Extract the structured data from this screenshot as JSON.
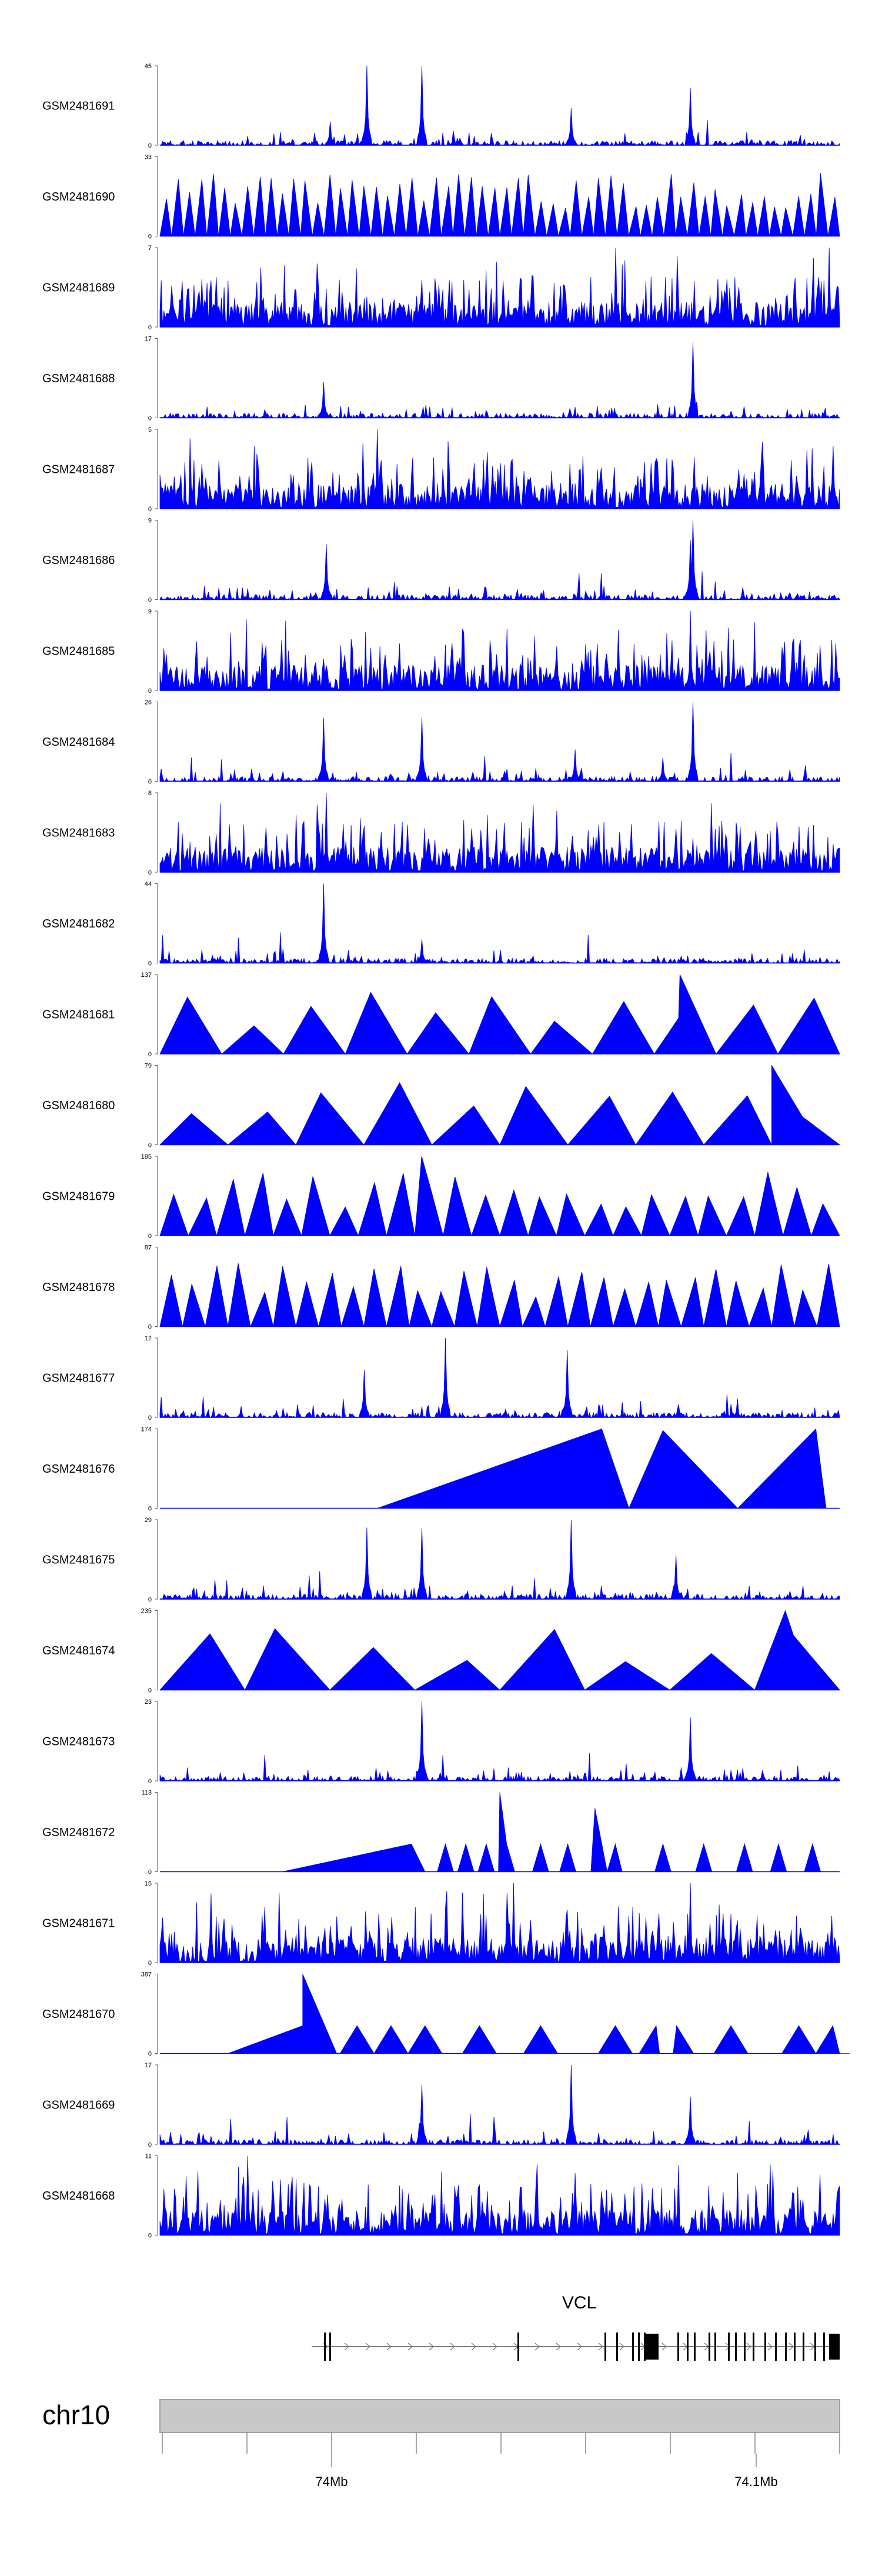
{
  "chart_data": {
    "type": "genome-browser-coverage",
    "color": "#0000ff",
    "tracks": [
      {
        "sample": "GSM2481691",
        "ymax": "45",
        "ymin": "0",
        "style": "spiky",
        "peaks": [
          [
            0.305,
            1.0
          ],
          [
            0.385,
            1.0
          ],
          [
            0.605,
            0.47
          ],
          [
            0.78,
            0.72
          ],
          [
            0.25,
            0.3
          ]
        ]
      },
      {
        "sample": "GSM2481690",
        "ymax": "33",
        "ymin": "0",
        "style": "triangles",
        "density": 58
      },
      {
        "sample": "GSM2481689",
        "ymax": "7",
        "ymin": "0",
        "style": "dense",
        "peaks": [
          [
            0.67,
            1.0
          ],
          [
            0.985,
            1.0
          ]
        ]
      },
      {
        "sample": "GSM2481688",
        "ymax": "17",
        "ymin": "0",
        "style": "spiky",
        "peaks": [
          [
            0.785,
            0.95
          ],
          [
            0.24,
            0.45
          ]
        ]
      },
      {
        "sample": "GSM2481687",
        "ymax": "5",
        "ymin": "0",
        "style": "dense",
        "peaks": [
          [
            0.32,
            1.0
          ]
        ]
      },
      {
        "sample": "GSM2481686",
        "ymax": "9",
        "ymin": "0",
        "style": "spiky",
        "peaks": [
          [
            0.785,
            1.0
          ],
          [
            0.245,
            0.7
          ],
          [
            0.78,
            0.75
          ]
        ]
      },
      {
        "sample": "GSM2481685",
        "ymax": "9",
        "ymin": "0",
        "style": "dense",
        "peaks": [
          [
            0.78,
            1.0
          ]
        ]
      },
      {
        "sample": "GSM2481684",
        "ymax": "26",
        "ymin": "0",
        "style": "spiky",
        "peaks": [
          [
            0.24,
            0.8
          ],
          [
            0.385,
            0.8
          ],
          [
            0.785,
            1.0
          ],
          [
            0.61,
            0.4
          ],
          [
            0.74,
            0.3
          ]
        ]
      },
      {
        "sample": "GSM2481683",
        "ymax": "8",
        "ymin": "0",
        "style": "dense",
        "peaks": [
          [
            0.245,
            1.0
          ]
        ]
      },
      {
        "sample": "GSM2481682",
        "ymax": "44",
        "ymin": "0",
        "style": "spiky",
        "peaks": [
          [
            0.24,
            1.0
          ],
          [
            0.385,
            0.3
          ]
        ]
      },
      {
        "sample": "GSM2481681",
        "ymax": "137",
        "ymin": "0",
        "style": "triangles",
        "density": 11,
        "peaks": [
          [
            0.765,
            1.0
          ]
        ]
      },
      {
        "sample": "GSM2481680",
        "ymax": "79",
        "ymin": "0",
        "style": "triangles",
        "density": 10,
        "peaks": [
          [
            0.9,
            1.0
          ]
        ]
      },
      {
        "sample": "GSM2481679",
        "ymax": "185",
        "ymin": "0",
        "style": "triangles",
        "density": 24,
        "peaks": [
          [
            0.385,
            1.0
          ]
        ]
      },
      {
        "sample": "GSM2481678",
        "ymax": "87",
        "ymin": "0",
        "style": "triangles",
        "density": 30
      },
      {
        "sample": "GSM2481677",
        "ymax": "12",
        "ymin": "0",
        "style": "spiky",
        "peaks": [
          [
            0.42,
            1.0
          ],
          [
            0.6,
            0.85
          ],
          [
            0.3,
            0.6
          ]
        ]
      },
      {
        "sample": "GSM2481676",
        "ymax": "174",
        "ymin": "0",
        "style": "big-triangles"
      },
      {
        "sample": "GSM2481675",
        "ymax": "29",
        "ymin": "0",
        "style": "spiky",
        "peaks": [
          [
            0.605,
            1.0
          ],
          [
            0.305,
            0.9
          ],
          [
            0.385,
            0.9
          ],
          [
            0.76,
            0.55
          ]
        ]
      },
      {
        "sample": "GSM2481674",
        "ymax": "235",
        "ymin": "0",
        "style": "triangles",
        "density": 8,
        "peaks": [
          [
            0.92,
            1.0
          ]
        ]
      },
      {
        "sample": "GSM2481673",
        "ymax": "23",
        "ymin": "0",
        "style": "spiky",
        "peaks": [
          [
            0.385,
            1.0
          ],
          [
            0.78,
            0.8
          ]
        ]
      },
      {
        "sample": "GSM2481672",
        "ymax": "113",
        "ymin": "0",
        "style": "ramp-triangles",
        "peaks": [
          [
            0.5,
            1.0
          ],
          [
            0.64,
            0.8
          ]
        ]
      },
      {
        "sample": "GSM2481671",
        "ymax": "15",
        "ymin": "0",
        "style": "dense",
        "peaks": [
          [
            0.52,
            1.0
          ],
          [
            0.78,
            1.0
          ]
        ]
      },
      {
        "sample": "GSM2481670",
        "ymax": "387",
        "ymin": "0",
        "style": "ramp-triangles2",
        "peaks": [
          [
            0.21,
            1.0
          ]
        ]
      },
      {
        "sample": "GSM2481669",
        "ymax": "17",
        "ymin": "0",
        "style": "spiky",
        "peaks": [
          [
            0.605,
            1.0
          ],
          [
            0.385,
            0.75
          ],
          [
            0.78,
            0.6
          ]
        ]
      },
      {
        "sample": "GSM2481668",
        "ymax": "11",
        "ymin": "0",
        "style": "dense",
        "peaks": [
          [
            0.13,
            1.0
          ]
        ]
      }
    ],
    "gene": {
      "name": "VCL"
    },
    "chromosome": {
      "name": "chr10",
      "tick_labels": [
        "74Mb",
        "74.1Mb"
      ]
    }
  }
}
